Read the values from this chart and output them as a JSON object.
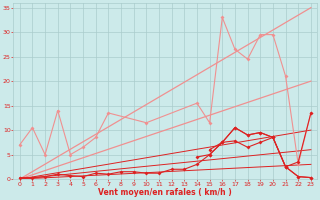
{
  "x": [
    0,
    1,
    2,
    3,
    4,
    5,
    6,
    7,
    8,
    9,
    10,
    11,
    12,
    13,
    14,
    15,
    16,
    17,
    18,
    19,
    20,
    21,
    22,
    23
  ],
  "diag_top1": [
    0.0,
    1.52,
    3.04,
    4.57,
    6.09,
    7.61,
    9.13,
    10.65,
    12.17,
    13.7,
    15.22,
    16.74,
    18.26,
    19.78,
    21.3,
    22.83,
    24.35,
    25.87,
    27.39,
    28.91,
    30.43,
    31.96,
    33.48,
    35.0
  ],
  "diag_top2": [
    0.0,
    0.87,
    1.74,
    2.61,
    3.48,
    4.35,
    5.22,
    6.09,
    6.96,
    7.83,
    8.7,
    9.57,
    10.43,
    11.3,
    12.17,
    13.04,
    13.91,
    14.78,
    15.65,
    16.52,
    17.39,
    18.26,
    19.13,
    20.0
  ],
  "diag_bot1": [
    0.0,
    0.43,
    0.87,
    1.3,
    1.74,
    2.17,
    2.61,
    3.04,
    3.48,
    3.91,
    4.35,
    4.78,
    5.22,
    5.65,
    6.09,
    6.52,
    6.96,
    7.39,
    7.83,
    8.26,
    8.7,
    9.13,
    9.57,
    10.0
  ],
  "diag_bot2": [
    0.0,
    0.26,
    0.52,
    0.78,
    1.04,
    1.3,
    1.57,
    1.83,
    2.09,
    2.35,
    2.61,
    2.87,
    3.13,
    3.39,
    3.65,
    3.91,
    4.17,
    4.43,
    4.7,
    4.96,
    5.22,
    5.48,
    5.74,
    6.0
  ],
  "diag_bot3": [
    0.0,
    0.13,
    0.26,
    0.39,
    0.52,
    0.65,
    0.78,
    0.91,
    1.04,
    1.17,
    1.3,
    1.43,
    1.57,
    1.7,
    1.83,
    1.96,
    2.09,
    2.22,
    2.35,
    2.48,
    2.61,
    2.74,
    2.87,
    3.0
  ],
  "line_salmon_x": [
    0,
    1,
    2,
    3,
    4,
    5,
    6,
    7,
    10,
    14,
    15,
    16,
    17,
    18,
    19,
    20,
    21,
    22,
    23
  ],
  "line_salmon_y": [
    7,
    10.5,
    5,
    14,
    5,
    6.5,
    8.5,
    13.5,
    11.5,
    15.5,
    11.5,
    33,
    26.5,
    24.5,
    29.5,
    29.5,
    21,
    3,
    13.5
  ],
  "line_dark1_x": [
    0,
    1,
    2,
    3,
    4,
    5,
    6,
    7,
    8,
    9,
    10,
    11,
    12,
    13,
    14,
    15,
    16,
    17,
    18,
    19,
    20,
    21,
    22,
    23
  ],
  "line_dark1_y": [
    0.3,
    0.3,
    0.5,
    1.0,
    0.7,
    0.5,
    1.2,
    1.0,
    1.5,
    1.5,
    1.2,
    1.2,
    2.0,
    2.0,
    3.0,
    5.0,
    7.5,
    7.8,
    6.5,
    7.5,
    8.5,
    2.5,
    0.5,
    0.3
  ],
  "line_dark2_x": [
    14,
    15,
    16,
    17,
    18,
    19,
    20,
    21,
    22,
    23
  ],
  "line_dark2_y": [
    4.5,
    5.0,
    7.5,
    10.5,
    9.0,
    9.5,
    8.5,
    2.5,
    3.5,
    13.5
  ],
  "line_dark3_x": [
    15,
    16,
    17,
    18,
    19,
    20,
    21,
    22,
    23
  ],
  "line_dark3_y": [
    6.0,
    7.5,
    10.5,
    9.0,
    9.5,
    8.5,
    2.5,
    0.5,
    0.3
  ],
  "bg_color": "#cceaea",
  "grid_color": "#aacccc",
  "salmon": "#f09090",
  "dark_red": "#dd2222",
  "xlabel": "Vent moyen/en rafales ( km/h )",
  "ylim": [
    0,
    36
  ],
  "xlim": [
    -0.5,
    23.5
  ],
  "yticks": [
    0,
    5,
    10,
    15,
    20,
    25,
    30,
    35
  ]
}
